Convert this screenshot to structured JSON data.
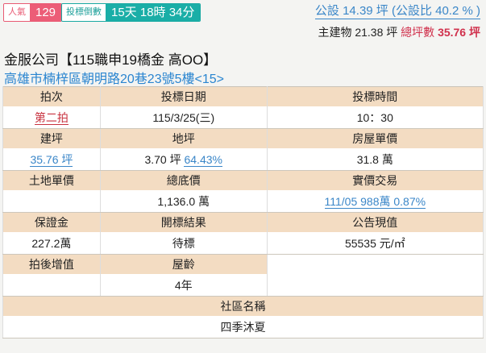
{
  "header": {
    "popularity_label": "人氣",
    "popularity_value": "129",
    "countdown_label": "投標倒數",
    "countdown_value": "15天 18時 34分",
    "public_area": "公設 14.39 坪 (公設比 40.2 % )",
    "main_building": "主建物 21.38 坪",
    "total_label": "總坪數",
    "total_value": "35.76 坪"
  },
  "title": "金服公司【115職申19橋金 高OO】",
  "address": "高雄市楠梓區朝明路20巷23號5樓<15>",
  "table": {
    "r1": {
      "h": [
        "拍次",
        "投標日期",
        "投標時間"
      ],
      "v": [
        "第二拍",
        "115/3/25(三)",
        "10：30"
      ]
    },
    "r2": {
      "h": [
        "建坪",
        "地坪",
        "房屋單價"
      ],
      "v": [
        "35.76 坪",
        "3.70 坪",
        "31.8 萬"
      ],
      "land_ratio": "64.43%"
    },
    "r3": {
      "h": [
        "土地單價",
        "總底價",
        "實價交易"
      ],
      "v": [
        "",
        "1,136.0 萬",
        "111/05 988萬 0.87%"
      ]
    },
    "r4": {
      "h": [
        "保證金",
        "開標結果",
        "公告現值"
      ],
      "v": [
        "227.2萬",
        "待標",
        "55535 元/㎡"
      ]
    },
    "r5": {
      "h": [
        "拍後增值",
        "屋齡"
      ],
      "v": [
        "",
        "4年"
      ]
    },
    "r6": {
      "h": "社區名稱",
      "v": "四季沐夏"
    }
  }
}
